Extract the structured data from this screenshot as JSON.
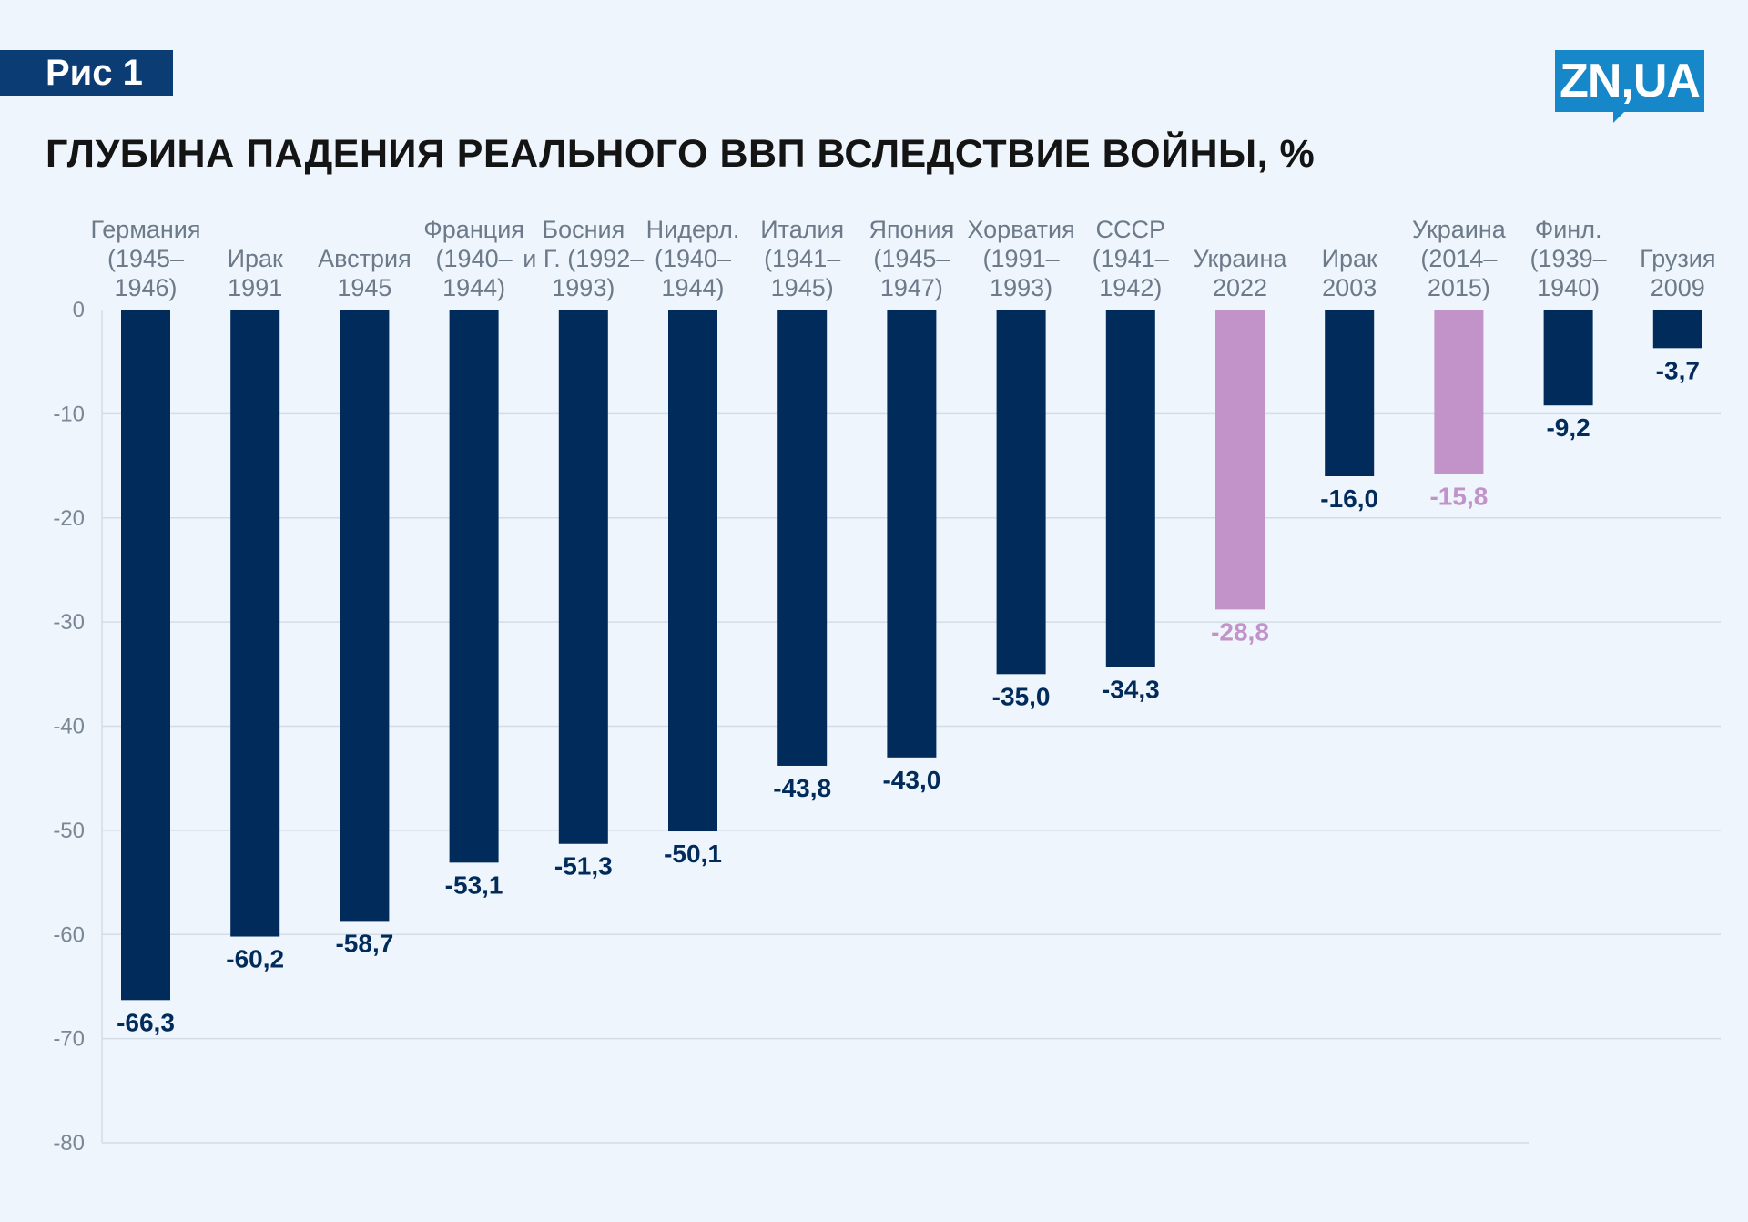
{
  "badge": "Рис 1",
  "logo": "ZN,UA",
  "chart_data": {
    "type": "bar",
    "title": "ГЛУБИНА ПАДЕНИЯ РЕАЛЬНОГО ВВП ВСЛЕДСТВИЕ ВОЙНЫ, %",
    "categories": [
      [
        "Германия",
        "(1945–",
        "1946)"
      ],
      [
        "Ирак",
        "1991"
      ],
      [
        "Австрия",
        "1945"
      ],
      [
        "Франция",
        "(1940–",
        "1944)"
      ],
      [
        "Босния",
        "и Г. (1992–",
        "1993)"
      ],
      [
        "Нидерл.",
        "(1940–",
        "1944)"
      ],
      [
        "Италия",
        "(1941–",
        "1945)"
      ],
      [
        "Япония",
        "(1945–",
        "1947)"
      ],
      [
        "Хорватия",
        "(1991–",
        "1993)"
      ],
      [
        "СССР",
        "(1941–",
        "1942)"
      ],
      [
        "Украина",
        "2022"
      ],
      [
        "Ирак",
        "2003"
      ],
      [
        "Украина",
        "(2014–",
        "2015)"
      ],
      [
        "Финл.",
        "(1939–",
        "1940)"
      ],
      [
        "Грузия",
        "2009"
      ]
    ],
    "values": [
      -66.3,
      -60.2,
      -58.7,
      -53.1,
      -51.3,
      -50.1,
      -43.8,
      -43.0,
      -35.0,
      -34.3,
      -28.8,
      -16.0,
      -15.8,
      -9.2,
      -3.7
    ],
    "value_labels": [
      "-66,3",
      "-60,2",
      "-58,7",
      "-53,1",
      "-51,3",
      "-50,1",
      "-43,8",
      "-43,0",
      "-35,0",
      "-34,3",
      "-28,8",
      "-16,0",
      "-15,8",
      "-9,2",
      "-3,7"
    ],
    "highlight": [
      false,
      false,
      false,
      false,
      false,
      false,
      false,
      false,
      false,
      false,
      true,
      false,
      true,
      false,
      false
    ],
    "colors": {
      "default": "#012b5b",
      "highlight": "#c193c8",
      "grid": "#d4dce6"
    },
    "yticks": [
      0,
      -10,
      -20,
      -30,
      -40,
      -50,
      -60,
      -70,
      -80
    ],
    "ylim": [
      -80,
      0
    ],
    "grid": true,
    "xlabel": "",
    "ylabel": ""
  }
}
